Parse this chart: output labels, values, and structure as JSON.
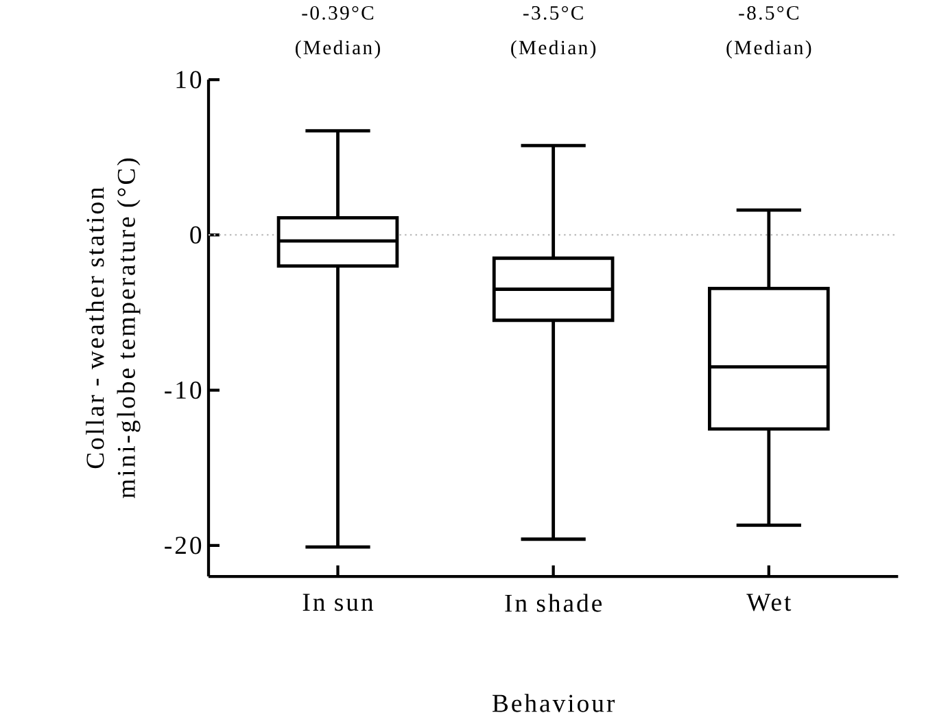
{
  "chart_data": {
    "type": "box",
    "xlabel": "Behaviour",
    "ylabel": "Collar - weather station mini-globe temperature (°C)",
    "categories": [
      "In sun",
      "In shade",
      "Wet"
    ],
    "boxes": [
      {
        "low": -20.1,
        "q1": -2.0,
        "median": -0.39,
        "q3": 1.1,
        "high": 6.7
      },
      {
        "low": -19.6,
        "q1": -5.5,
        "median": -3.5,
        "q3": -1.5,
        "high": 5.75
      },
      {
        "low": -18.7,
        "q1": -12.5,
        "median": -8.5,
        "q3": -3.45,
        "high": 1.6
      }
    ],
    "color": "#000000",
    "ylim": [
      -22,
      10
    ],
    "yticks": [
      -20,
      -10,
      0,
      10
    ],
    "ref_lines": [
      {
        "axis": "y",
        "value": 0,
        "color": "#c0c0c0",
        "line_style": "dotted"
      }
    ],
    "annotations": [
      "-0.39°C (Median)",
      "-3.5°C (Median)",
      "-8.5°C (Median)"
    ]
  }
}
